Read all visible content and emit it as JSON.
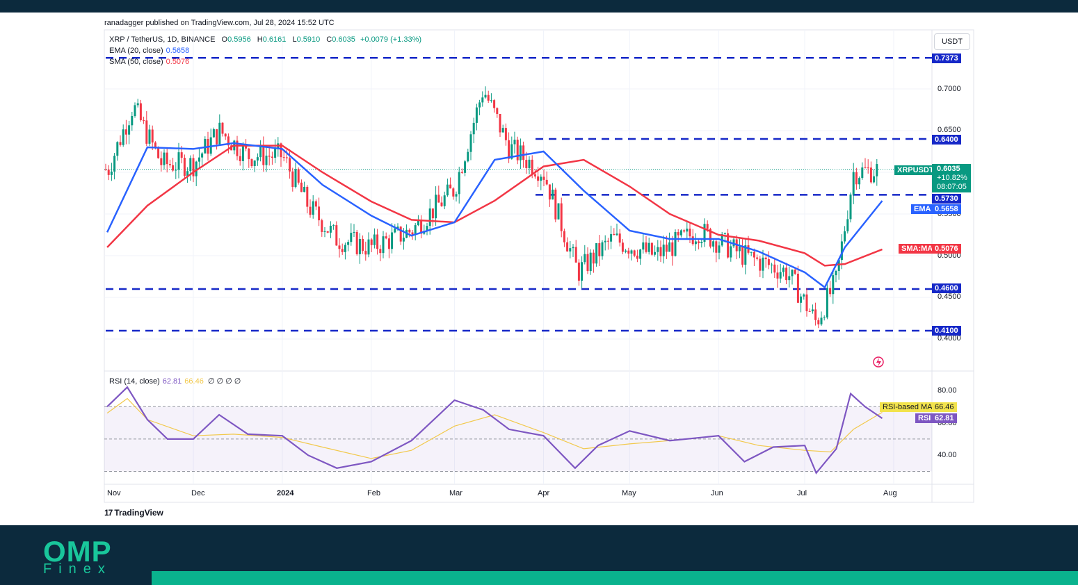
{
  "credit": "ranadagger published on TradingView.com, Jul 28, 2024 15:52 UTC",
  "legend": {
    "symbol": "XRP / TetherUS, 1D, BINANCE",
    "o_key": "O",
    "o": "0.5956",
    "h_key": "H",
    "h": "0.6161",
    "l_key": "L",
    "l": "0.5910",
    "c_key": "C",
    "c": "0.6035",
    "chg": "+0.0079 (+1.33%)",
    "ema_label": "EMA (20, close)",
    "ema_value": "0.5658",
    "sma_label": "SMA (50, close)",
    "sma_value": "0.5076",
    "rsi_label": "RSI (14, close)",
    "rsi_value": "62.81",
    "rsi_ma_value": "66.46",
    "na": "∅ ∅ ∅ ∅"
  },
  "currency": "USDT",
  "price_ticks": [
    "0.7000",
    "0.6500",
    "0.5500",
    "0.5000",
    "0.4500",
    "0.4000"
  ],
  "rsi_ticks": [
    "80.00",
    "60.00",
    "40.00"
  ],
  "level_tags": [
    "0.7373",
    "0.6400",
    "0.5730",
    "0.4600",
    "0.4100"
  ],
  "last_price": {
    "symbol": "XRPUSDT",
    "price": "0.6035",
    "change": "+10.82%",
    "countdown": "08:07:05"
  },
  "ema_tag": {
    "name": "EMA",
    "value": "0.5658"
  },
  "sma_tag": {
    "name": "SMA:MA",
    "value": "0.5076"
  },
  "rsi_ma_tag": {
    "name": "RSI-based MA",
    "value": "66.46"
  },
  "rsi_tag": {
    "name": "RSI",
    "value": "62.81"
  },
  "x_labels": [
    "Nov",
    "Dec",
    "2024",
    "Feb",
    "Mar",
    "Apr",
    "May",
    "Jun",
    "Jul",
    "Aug"
  ],
  "tradingview_logo": "TradingView",
  "brand": {
    "name": "OMP",
    "sub": "Finex"
  },
  "colors": {
    "up": "#089981",
    "down": "#f23645",
    "ema": "#2962ff",
    "sma": "#f23645",
    "level": "#1628c8",
    "rsi": "#7e57c2",
    "rsi_ma": "#f2c94c",
    "brand": "#19c69b"
  },
  "chart_data": [
    {
      "type": "candlestick",
      "title": "XRP / TetherUS, 1D, BINANCE",
      "x_range": [
        "2023-11-01",
        "2024-07-28"
      ],
      "ylim": [
        0.37,
        0.75
      ],
      "horizontal_levels": [
        0.7373,
        0.64,
        0.573,
        0.46,
        0.41
      ],
      "series": [
        {
          "name": "EMA (20, close)",
          "x": [
            "2023-11-01",
            "2023-11-15",
            "2023-12-01",
            "2023-12-15",
            "2024-01-01",
            "2024-01-15",
            "2024-02-01",
            "2024-02-15",
            "2024-03-01",
            "2024-03-15",
            "2024-04-01",
            "2024-04-15",
            "2024-05-01",
            "2024-05-15",
            "2024-06-01",
            "2024-06-15",
            "2024-07-01",
            "2024-07-08",
            "2024-07-15",
            "2024-07-28"
          ],
          "values": [
            0.528,
            0.63,
            0.628,
            0.635,
            0.628,
            0.585,
            0.548,
            0.524,
            0.54,
            0.615,
            0.625,
            0.578,
            0.53,
            0.52,
            0.52,
            0.505,
            0.48,
            0.462,
            0.51,
            0.5658
          ]
        },
        {
          "name": "SMA (50, close)",
          "x": [
            "2023-11-01",
            "2023-11-15",
            "2023-12-01",
            "2023-12-15",
            "2024-01-01",
            "2024-01-15",
            "2024-02-01",
            "2024-02-15",
            "2024-03-01",
            "2024-03-15",
            "2024-04-01",
            "2024-04-15",
            "2024-05-01",
            "2024-05-15",
            "2024-06-01",
            "2024-06-15",
            "2024-07-01",
            "2024-07-08",
            "2024-07-15",
            "2024-07-28"
          ],
          "values": [
            0.51,
            0.56,
            0.6,
            0.632,
            0.632,
            0.6,
            0.565,
            0.543,
            0.54,
            0.566,
            0.607,
            0.615,
            0.583,
            0.55,
            0.525,
            0.518,
            0.503,
            0.488,
            0.49,
            0.5076
          ]
        },
        {
          "name": "close (approx.)",
          "x": [
            "2023-11-01",
            "2023-11-10",
            "2023-11-20",
            "2023-12-01",
            "2023-12-10",
            "2023-12-20",
            "2024-01-01",
            "2024-01-10",
            "2024-01-20",
            "2024-02-01",
            "2024-02-15",
            "2024-03-01",
            "2024-03-11",
            "2024-03-20",
            "2024-04-01",
            "2024-04-13",
            "2024-04-25",
            "2024-05-10",
            "2024-05-25",
            "2024-06-10",
            "2024-06-25",
            "2024-07-05",
            "2024-07-12",
            "2024-07-18",
            "2024-07-28"
          ],
          "values": [
            0.6,
            0.68,
            0.61,
            0.61,
            0.65,
            0.62,
            0.62,
            0.56,
            0.52,
            0.51,
            0.53,
            0.58,
            0.7,
            0.63,
            0.6,
            0.48,
            0.52,
            0.5,
            0.53,
            0.5,
            0.48,
            0.42,
            0.47,
            0.6,
            0.6035
          ]
        }
      ]
    },
    {
      "type": "line",
      "title": "RSI (14, close)",
      "ylim": [
        25,
        90
      ],
      "bands": [
        70,
        50,
        30
      ],
      "series": [
        {
          "name": "RSI",
          "x": [
            "2023-11-01",
            "2023-11-08",
            "2023-11-15",
            "2023-11-22",
            "2023-12-01",
            "2023-12-10",
            "2023-12-20",
            "2024-01-01",
            "2024-01-10",
            "2024-01-20",
            "2024-02-01",
            "2024-02-15",
            "2024-03-01",
            "2024-03-11",
            "2024-03-20",
            "2024-04-01",
            "2024-04-12",
            "2024-04-20",
            "2024-05-01",
            "2024-05-15",
            "2024-06-01",
            "2024-06-10",
            "2024-06-20",
            "2024-07-01",
            "2024-07-05",
            "2024-07-12",
            "2024-07-17",
            "2024-07-22",
            "2024-07-28"
          ],
          "values": [
            70,
            82,
            62,
            50,
            50,
            65,
            53,
            52,
            40,
            32,
            36,
            49,
            74,
            68,
            56,
            52,
            32,
            46,
            55,
            49,
            52,
            36,
            45,
            46,
            29,
            44,
            78,
            70,
            62.81
          ]
        },
        {
          "name": "RSI-based MA",
          "x": [
            "2023-11-01",
            "2023-11-08",
            "2023-11-15",
            "2023-12-01",
            "2023-12-15",
            "2024-01-01",
            "2024-01-15",
            "2024-02-01",
            "2024-02-15",
            "2024-03-01",
            "2024-03-15",
            "2024-04-01",
            "2024-04-15",
            "2024-05-01",
            "2024-05-15",
            "2024-06-01",
            "2024-06-15",
            "2024-07-01",
            "2024-07-10",
            "2024-07-18",
            "2024-07-28"
          ],
          "values": [
            66,
            75,
            62,
            52,
            53,
            51,
            45,
            38,
            43,
            58,
            65,
            54,
            44,
            47,
            49,
            52,
            46,
            43,
            42,
            56,
            66.46
          ]
        }
      ]
    }
  ]
}
